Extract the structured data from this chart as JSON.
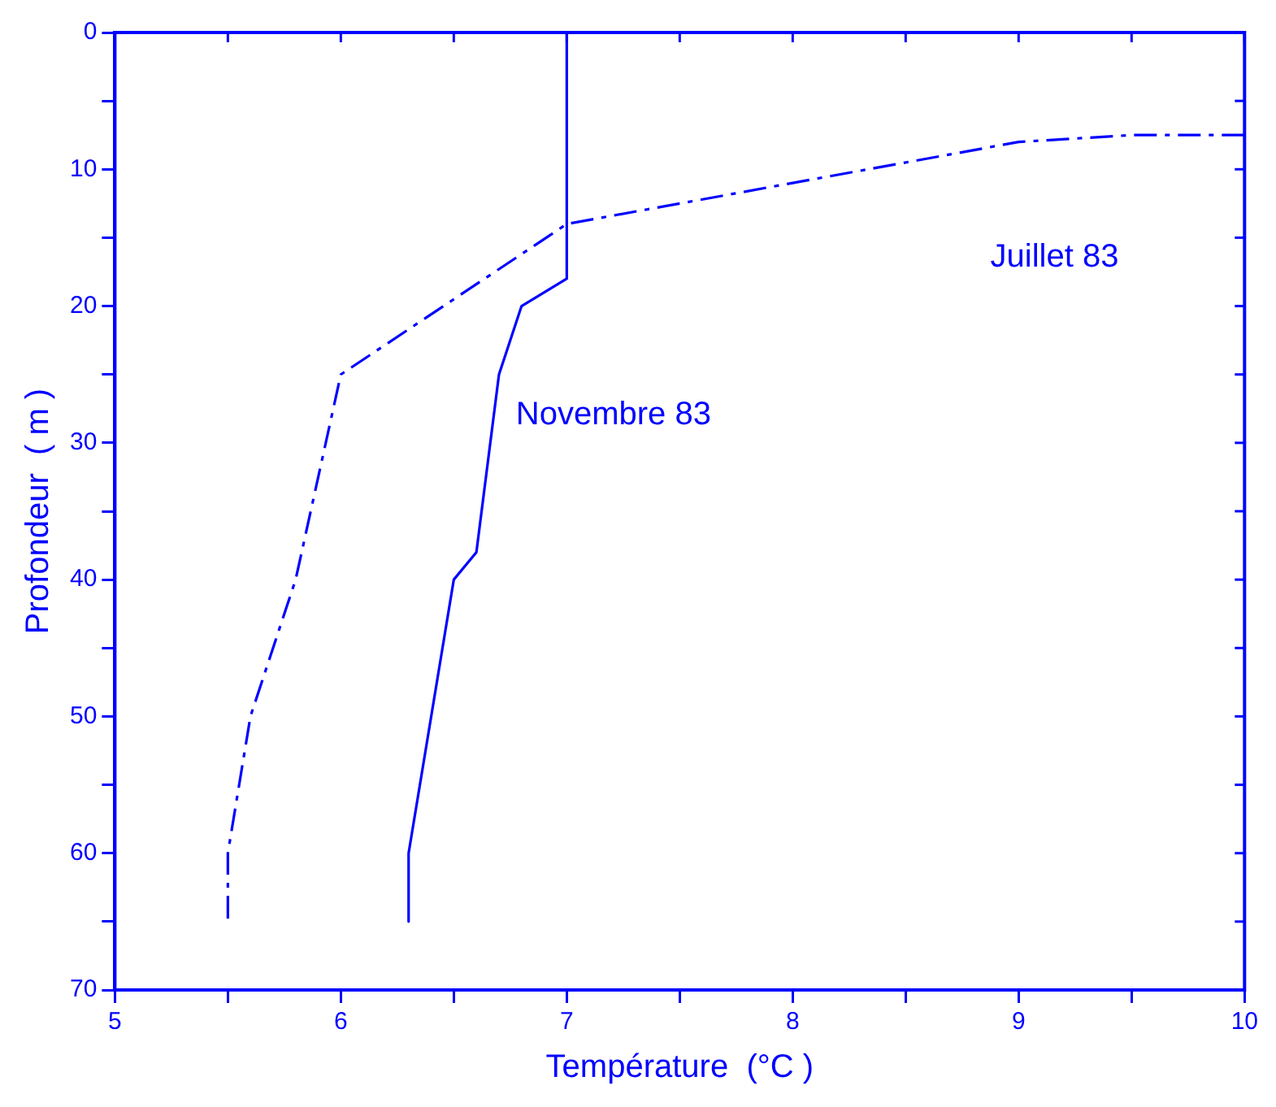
{
  "chart_data": {
    "type": "line",
    "xlabel": "Température  (°C )",
    "ylabel": "Profondeur  ( m )",
    "series": [
      {
        "name": "Novembre 83",
        "color": "#0000ff",
        "line_style": "solid",
        "x": [
          7,
          7,
          6.8,
          6.7,
          6.6,
          6.5,
          6.3,
          6.3
        ],
        "values": [
          0,
          18,
          20,
          25,
          38,
          40,
          60,
          65
        ]
      },
      {
        "name": "Juillet 83",
        "color": "#0000ff",
        "line_style": "dashed",
        "x": [
          10,
          9.5,
          9,
          8,
          7,
          6,
          5.8,
          5.6,
          5.5,
          5.5
        ],
        "values": [
          7.5,
          7.5,
          8,
          11,
          14,
          25,
          40,
          50,
          60,
          65
        ]
      }
    ],
    "xlim": [
      5,
      10
    ],
    "xticks": [
      5,
      {
        "value": 5.5,
        "label": null
      },
      6,
      {
        "value": 6.5,
        "label": null
      },
      7,
      {
        "value": 7.5,
        "label": null
      },
      8,
      {
        "value": 8.5,
        "label": null
      },
      9,
      {
        "value": 9.5,
        "label": null
      },
      10
    ],
    "ylim": [
      70,
      0
    ],
    "yticks": [
      0,
      {
        "value": 5,
        "label": null
      },
      10,
      {
        "value": 15,
        "label": null
      },
      20,
      {
        "value": 25,
        "label": null
      },
      30,
      {
        "value": 35,
        "label": null
      },
      40,
      {
        "value": 45,
        "label": null
      },
      50,
      {
        "value": 55,
        "label": null
      },
      60,
      {
        "value": 65,
        "label": null
      },
      70
    ],
    "grid": false,
    "legend": false,
    "marker": "none"
  }
}
